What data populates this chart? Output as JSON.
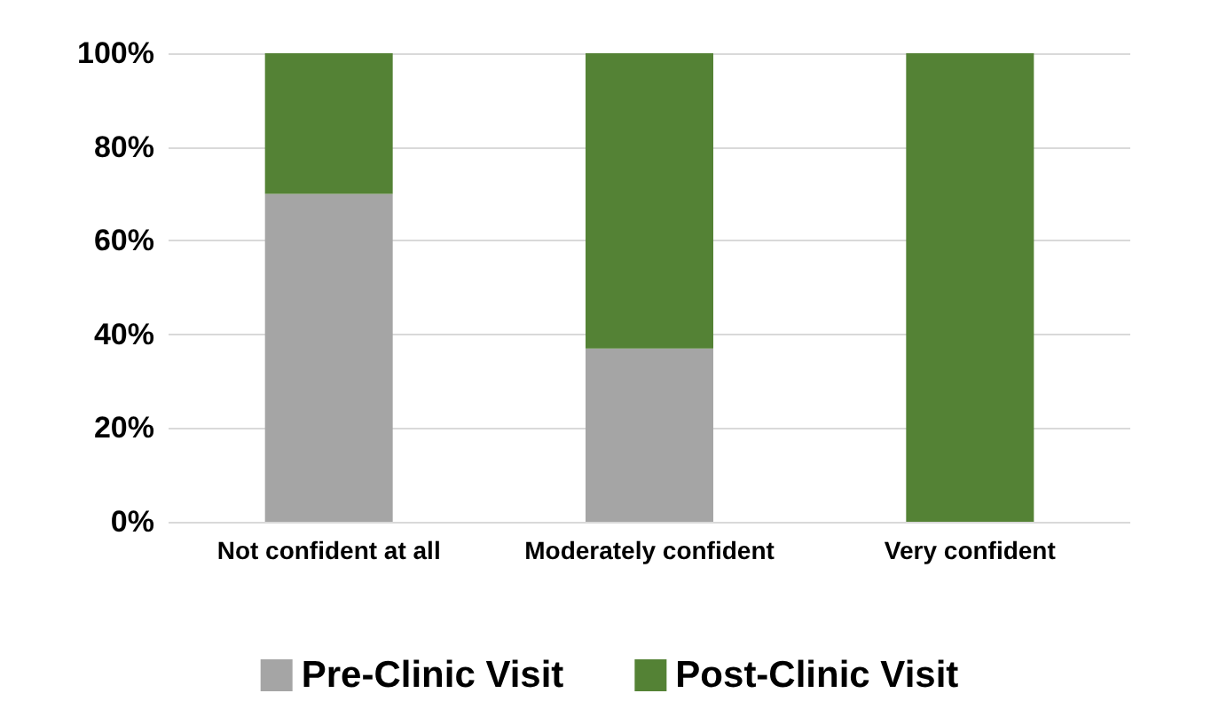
{
  "chart_data": {
    "type": "bar",
    "stacked": true,
    "categories": [
      "Not confident at all",
      "Moderately confident",
      "Very confident"
    ],
    "series": [
      {
        "name": "Pre-Clinic Visit",
        "color": "#a5a5a5",
        "values": [
          70,
          37,
          0
        ]
      },
      {
        "name": "Post-Clinic Visit",
        "color": "#548235",
        "values": [
          30,
          63,
          100
        ]
      }
    ],
    "ylim": [
      0,
      100
    ],
    "yticks": [
      {
        "value": 0,
        "label": "0%"
      },
      {
        "value": 20,
        "label": "20%"
      },
      {
        "value": 40,
        "label": "40%"
      },
      {
        "value": 60,
        "label": "60%"
      },
      {
        "value": 80,
        "label": "80%"
      },
      {
        "value": 100,
        "label": "100%"
      }
    ],
    "grid": "y",
    "legend": "bottom"
  }
}
